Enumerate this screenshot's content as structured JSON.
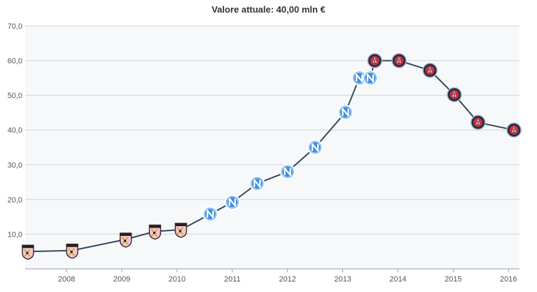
{
  "chart_data": {
    "type": "line",
    "title": "Valore attuale: 40,00 mln €",
    "xlabel": "",
    "ylabel": "",
    "ylim": [
      0,
      70
    ],
    "yticks": [
      "70,0",
      "60,0",
      "50,0",
      "40,0",
      "30,0",
      "20,0",
      "10,0"
    ],
    "ytick_values": [
      70,
      60,
      50,
      40,
      30,
      20,
      10
    ],
    "xticks": [
      "2008",
      "2009",
      "2010",
      "2011",
      "2012",
      "2013",
      "2014",
      "2015",
      "2016"
    ],
    "xtick_values": [
      2008,
      2009,
      2010,
      2011,
      2012,
      2013,
      2014,
      2015,
      2016
    ],
    "xlim": [
      2007.25,
      2016.2
    ],
    "grid": true,
    "series": [
      {
        "name": "",
        "color": "#34495e",
        "points": [
          {
            "x": 2007.3,
            "y": 5.0,
            "club": "palermo"
          },
          {
            "x": 2008.1,
            "y": 5.3,
            "club": "palermo"
          },
          {
            "x": 2009.07,
            "y": 8.5,
            "club": "palermo"
          },
          {
            "x": 2009.6,
            "y": 10.8,
            "club": "palermo"
          },
          {
            "x": 2010.07,
            "y": 11.3,
            "club": "palermo"
          },
          {
            "x": 2010.6,
            "y": 15.8,
            "club": "napoli"
          },
          {
            "x": 2011.0,
            "y": 19.2,
            "club": "napoli"
          },
          {
            "x": 2011.45,
            "y": 24.6,
            "club": "napoli"
          },
          {
            "x": 2012.0,
            "y": 28.0,
            "club": "napoli"
          },
          {
            "x": 2012.5,
            "y": 35.0,
            "club": "napoli"
          },
          {
            "x": 2013.05,
            "y": 45.1,
            "club": "napoli"
          },
          {
            "x": 2013.3,
            "y": 55.0,
            "club": "napoli"
          },
          {
            "x": 2013.5,
            "y": 55.0,
            "club": "napoli"
          },
          {
            "x": 2013.58,
            "y": 60.0,
            "club": "psg"
          },
          {
            "x": 2014.02,
            "y": 60.0,
            "club": "psg"
          },
          {
            "x": 2014.58,
            "y": 57.2,
            "club": "psg"
          },
          {
            "x": 2015.02,
            "y": 50.2,
            "club": "psg"
          },
          {
            "x": 2015.45,
            "y": 42.2,
            "club": "psg"
          },
          {
            "x": 2016.1,
            "y": 40.0,
            "club": "psg"
          }
        ]
      }
    ],
    "marker_icons": {
      "palermo": "palermo-crest-icon",
      "napoli": "napoli-crest-icon",
      "psg": "psg-crest-icon"
    },
    "colors": {
      "plot_bg": "#f7f8fa",
      "grid": "#cfd3d8",
      "line": "#34495e",
      "napoli": "#3d8ee0",
      "psg": "#1f2d4a",
      "palermo": "#f0b7c0"
    }
  }
}
